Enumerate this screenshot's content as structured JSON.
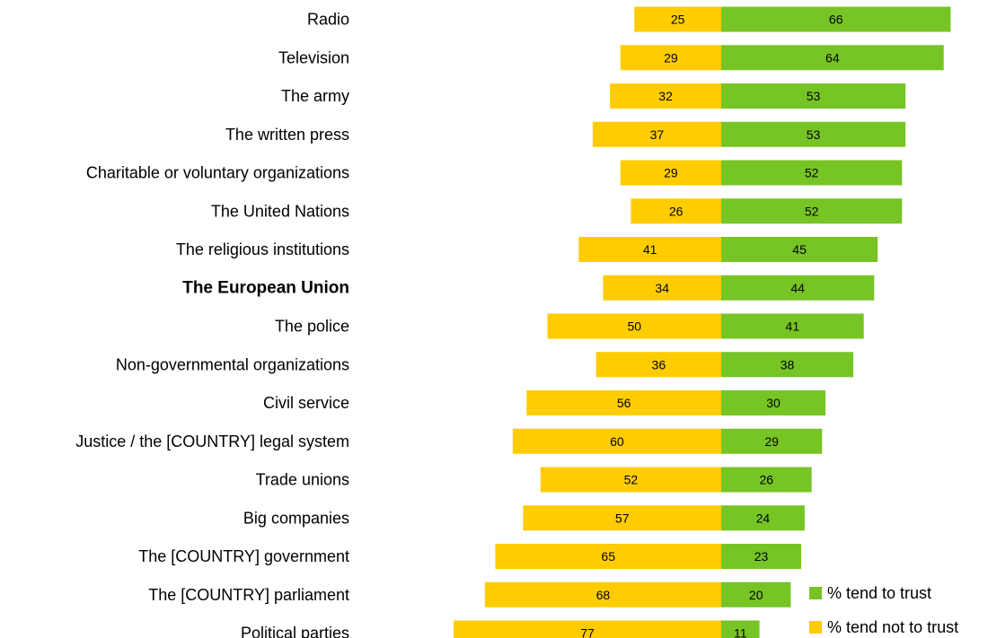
{
  "chart_data": {
    "type": "bar",
    "orientation": "horizontal-diverging",
    "categories": [
      "Radio",
      "Television",
      "The army",
      "The written press",
      "Charitable or voluntary organizations",
      "The United Nations",
      "The religious institutions",
      "The European Union",
      "The police",
      "Non-governmental organizations",
      "Civil service",
      "Justice / the [COUNTRY] legal system",
      "Trade unions",
      "Big companies",
      "The [COUNTRY] government",
      "The [COUNTRY] parliament",
      "Political parties"
    ],
    "highlighted_category": "The European Union",
    "series": [
      {
        "name": "% tend to trust",
        "color": "#77c425",
        "direction": "right",
        "values": [
          66,
          64,
          53,
          53,
          52,
          52,
          45,
          44,
          41,
          38,
          30,
          29,
          26,
          24,
          23,
          20,
          11
        ]
      },
      {
        "name": "% tend not to trust",
        "color": "#ffcc00",
        "direction": "left",
        "values": [
          25,
          29,
          32,
          37,
          29,
          26,
          41,
          34,
          50,
          36,
          56,
          60,
          52,
          57,
          65,
          68,
          77
        ]
      }
    ],
    "legend_position": "bottom-right",
    "grid": false,
    "axes_visible": false
  }
}
